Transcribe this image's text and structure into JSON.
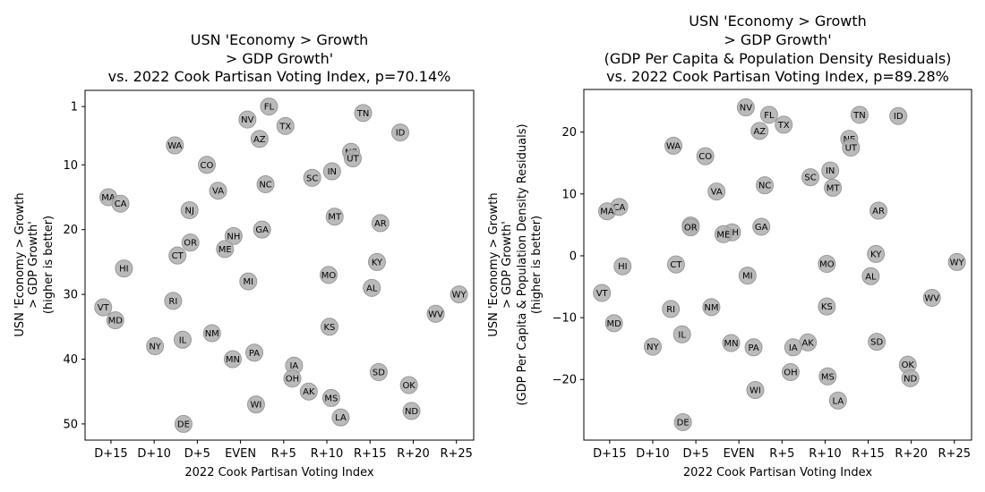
{
  "chart_data": [
    {
      "type": "scatter",
      "title_lines": [
        "USN 'Economy > Growth",
        "> GDP Growth'",
        "vs. 2022 Cook Partisan Voting Index, p=70.14%"
      ],
      "xlabel": "2022 Cook Partisan Voting Index",
      "ylabel_lines": [
        "USN 'Economy > Growth",
        "> GDP Growth'",
        "(higher is better)"
      ],
      "xlim": [
        -18,
        27
      ],
      "ylim": [
        52.5,
        -1.5
      ],
      "y_inverted": true,
      "x_ticks": [
        {
          "value": -15,
          "label": "D+15"
        },
        {
          "value": -10,
          "label": "D+10"
        },
        {
          "value": -5,
          "label": "D+5"
        },
        {
          "value": 0,
          "label": "EVEN"
        },
        {
          "value": 5,
          "label": "R+5"
        },
        {
          "value": 10,
          "label": "R+10"
        },
        {
          "value": 15,
          "label": "R+15"
        },
        {
          "value": 20,
          "label": "R+20"
        },
        {
          "value": 25,
          "label": "R+25"
        }
      ],
      "y_ticks": [
        {
          "value": 1,
          "label": "1"
        },
        {
          "value": 10,
          "label": "10"
        },
        {
          "value": 20,
          "label": "20"
        },
        {
          "value": 30,
          "label": "30"
        },
        {
          "value": 40,
          "label": "40"
        },
        {
          "value": 50,
          "label": "50"
        }
      ],
      "grid": false,
      "marker_color": "#b3b3b3",
      "marker_edge": "#999999",
      "points": [
        {
          "label": "FL",
          "x": 3.3,
          "y": 1
        },
        {
          "label": "TN",
          "x": 14.2,
          "y": 2
        },
        {
          "label": "NV",
          "x": 0.8,
          "y": 3
        },
        {
          "label": "TX",
          "x": 5.2,
          "y": 4
        },
        {
          "label": "ID",
          "x": 18.5,
          "y": 5
        },
        {
          "label": "AZ",
          "x": 2.2,
          "y": 6
        },
        {
          "label": "WA",
          "x": -7.6,
          "y": 7
        },
        {
          "label": "NE",
          "x": 12.8,
          "y": 8
        },
        {
          "label": "UT",
          "x": 13.0,
          "y": 9
        },
        {
          "label": "CO",
          "x": -3.9,
          "y": 10
        },
        {
          "label": "IN",
          "x": 10.6,
          "y": 11
        },
        {
          "label": "SC",
          "x": 8.3,
          "y": 12
        },
        {
          "label": "NC",
          "x": 2.9,
          "y": 13
        },
        {
          "label": "VA",
          "x": -2.6,
          "y": 14
        },
        {
          "label": "MA",
          "x": -15.3,
          "y": 15
        },
        {
          "label": "CA",
          "x": -13.9,
          "y": 16
        },
        {
          "label": "NJ",
          "x": -5.9,
          "y": 17
        },
        {
          "label": "MT",
          "x": 10.9,
          "y": 18
        },
        {
          "label": "AR",
          "x": 16.2,
          "y": 19
        },
        {
          "label": "GA",
          "x": 2.5,
          "y": 20
        },
        {
          "label": "NH",
          "x": -0.8,
          "y": 21
        },
        {
          "label": "OR",
          "x": -5.8,
          "y": 22
        },
        {
          "label": "ME",
          "x": -1.8,
          "y": 23
        },
        {
          "label": "CT",
          "x": -7.3,
          "y": 24
        },
        {
          "label": "KY",
          "x": 15.8,
          "y": 25
        },
        {
          "label": "HI",
          "x": -13.5,
          "y": 26
        },
        {
          "label": "MO",
          "x": 10.2,
          "y": 27
        },
        {
          "label": "MI",
          "x": 0.9,
          "y": 28
        },
        {
          "label": "AL",
          "x": 15.2,
          "y": 29
        },
        {
          "label": "WY",
          "x": 25.3,
          "y": 30
        },
        {
          "label": "RI",
          "x": -7.8,
          "y": 31
        },
        {
          "label": "VT",
          "x": -15.9,
          "y": 32
        },
        {
          "label": "WV",
          "x": 22.6,
          "y": 33
        },
        {
          "label": "MD",
          "x": -14.5,
          "y": 34
        },
        {
          "label": "KS",
          "x": 10.3,
          "y": 35
        },
        {
          "label": "NM",
          "x": -3.3,
          "y": 36
        },
        {
          "label": "IL",
          "x": -6.7,
          "y": 37
        },
        {
          "label": "NY",
          "x": -9.9,
          "y": 38
        },
        {
          "label": "PA",
          "x": 1.6,
          "y": 39
        },
        {
          "label": "MN",
          "x": -0.9,
          "y": 40
        },
        {
          "label": "IA",
          "x": 6.2,
          "y": 41
        },
        {
          "label": "SD",
          "x": 16.0,
          "y": 42
        },
        {
          "label": "OH",
          "x": 6.0,
          "y": 43
        },
        {
          "label": "OK",
          "x": 19.5,
          "y": 44
        },
        {
          "label": "AK",
          "x": 7.9,
          "y": 45
        },
        {
          "label": "MS",
          "x": 10.5,
          "y": 46
        },
        {
          "label": "WI",
          "x": 1.8,
          "y": 47
        },
        {
          "label": "ND",
          "x": 19.8,
          "y": 48
        },
        {
          "label": "LA",
          "x": 11.6,
          "y": 49
        },
        {
          "label": "DE",
          "x": -6.6,
          "y": 50
        }
      ]
    },
    {
      "type": "scatter",
      "title_lines": [
        "USN 'Economy > Growth",
        "> GDP Growth'",
        "(GDP Per Capita & Population Density Residuals)",
        "vs. 2022 Cook Partisan Voting Index, p=89.28%"
      ],
      "xlabel": "2022 Cook Partisan Voting Index",
      "ylabel_lines": [
        "USN 'Economy > Growth",
        "> GDP Growth'",
        "(GDP Per Capita & Population Density Residuals)",
        "(higher is better)"
      ],
      "xlim": [
        -18,
        27
      ],
      "ylim": [
        -29.8,
        26.9
      ],
      "y_inverted": false,
      "x_ticks": [
        {
          "value": -15,
          "label": "D+15"
        },
        {
          "value": -10,
          "label": "D+10"
        },
        {
          "value": -5,
          "label": "D+5"
        },
        {
          "value": 0,
          "label": "EVEN"
        },
        {
          "value": 5,
          "label": "R+5"
        },
        {
          "value": 10,
          "label": "R+10"
        },
        {
          "value": 15,
          "label": "R+15"
        },
        {
          "value": 20,
          "label": "R+20"
        },
        {
          "value": 25,
          "label": "R+25"
        }
      ],
      "y_ticks": [
        {
          "value": 20,
          "label": "20"
        },
        {
          "value": 10,
          "label": "10"
        },
        {
          "value": 0,
          "label": "0"
        },
        {
          "value": -10,
          "label": "−10"
        },
        {
          "value": -20,
          "label": "−20"
        }
      ],
      "grid": false,
      "marker_color": "#b3b3b3",
      "marker_edge": "#999999",
      "points": [
        {
          "label": "NV",
          "x": 0.8,
          "y": 24.0
        },
        {
          "label": "FL",
          "x": 3.5,
          "y": 22.8
        },
        {
          "label": "TN",
          "x": 14.0,
          "y": 22.8
        },
        {
          "label": "ID",
          "x": 18.5,
          "y": 22.6
        },
        {
          "label": "TX",
          "x": 5.2,
          "y": 21.2
        },
        {
          "label": "AZ",
          "x": 2.4,
          "y": 20.2
        },
        {
          "label": "NE",
          "x": 12.8,
          "y": 18.9
        },
        {
          "label": "WA",
          "x": -7.6,
          "y": 17.8
        },
        {
          "label": "UT",
          "x": 13.0,
          "y": 17.5
        },
        {
          "label": "CO",
          "x": -3.9,
          "y": 16.1
        },
        {
          "label": "IN",
          "x": 10.6,
          "y": 13.8
        },
        {
          "label": "SC",
          "x": 8.3,
          "y": 12.7
        },
        {
          "label": "NC",
          "x": 3.0,
          "y": 11.4
        },
        {
          "label": "MT",
          "x": 10.9,
          "y": 11.0
        },
        {
          "label": "VA",
          "x": -2.6,
          "y": 10.4
        },
        {
          "label": "CA",
          "x": -13.9,
          "y": 7.9
        },
        {
          "label": "MA",
          "x": -15.3,
          "y": 7.2
        },
        {
          "label": "AR",
          "x": 16.2,
          "y": 7.3
        },
        {
          "label": "NJ",
          "x": -5.6,
          "y": 4.9
        },
        {
          "label": "OR",
          "x": -5.6,
          "y": 4.6
        },
        {
          "label": "GA",
          "x": 2.6,
          "y": 4.7
        },
        {
          "label": "NH",
          "x": -0.8,
          "y": 3.8
        },
        {
          "label": "ME",
          "x": -1.8,
          "y": 3.5
        },
        {
          "label": "KY",
          "x": 15.9,
          "y": 0.3
        },
        {
          "label": "HI",
          "x": -13.5,
          "y": -1.7
        },
        {
          "label": "CT",
          "x": -7.3,
          "y": -1.4
        },
        {
          "label": "MO",
          "x": 10.2,
          "y": -1.3
        },
        {
          "label": "WY",
          "x": 25.3,
          "y": -1.0
        },
        {
          "label": "MI",
          "x": 1.0,
          "y": -3.2
        },
        {
          "label": "AL",
          "x": 15.3,
          "y": -3.3
        },
        {
          "label": "VT",
          "x": -15.9,
          "y": -6.0
        },
        {
          "label": "WV",
          "x": 22.4,
          "y": -6.8
        },
        {
          "label": "RI",
          "x": -7.9,
          "y": -8.6
        },
        {
          "label": "NM",
          "x": -3.2,
          "y": -8.3
        },
        {
          "label": "KS",
          "x": 10.2,
          "y": -8.2
        },
        {
          "label": "MD",
          "x": -14.5,
          "y": -10.9
        },
        {
          "label": "IL",
          "x": -6.6,
          "y": -12.7
        },
        {
          "label": "SD",
          "x": 16.0,
          "y": -13.9
        },
        {
          "label": "AK",
          "x": 8.0,
          "y": -14.0
        },
        {
          "label": "NY",
          "x": -10.0,
          "y": -14.7
        },
        {
          "label": "MN",
          "x": -0.9,
          "y": -14.1
        },
        {
          "label": "PA",
          "x": 1.7,
          "y": -14.8
        },
        {
          "label": "IA",
          "x": 6.3,
          "y": -14.8
        },
        {
          "label": "OK",
          "x": 19.6,
          "y": -17.6
        },
        {
          "label": "OH",
          "x": 6.0,
          "y": -18.8
        },
        {
          "label": "MS",
          "x": 10.3,
          "y": -19.5
        },
        {
          "label": "ND",
          "x": 19.9,
          "y": -19.8
        },
        {
          "label": "WI",
          "x": 1.9,
          "y": -21.7
        },
        {
          "label": "LA",
          "x": 11.5,
          "y": -23.4
        },
        {
          "label": "DE",
          "x": -6.5,
          "y": -26.9
        }
      ]
    }
  ]
}
